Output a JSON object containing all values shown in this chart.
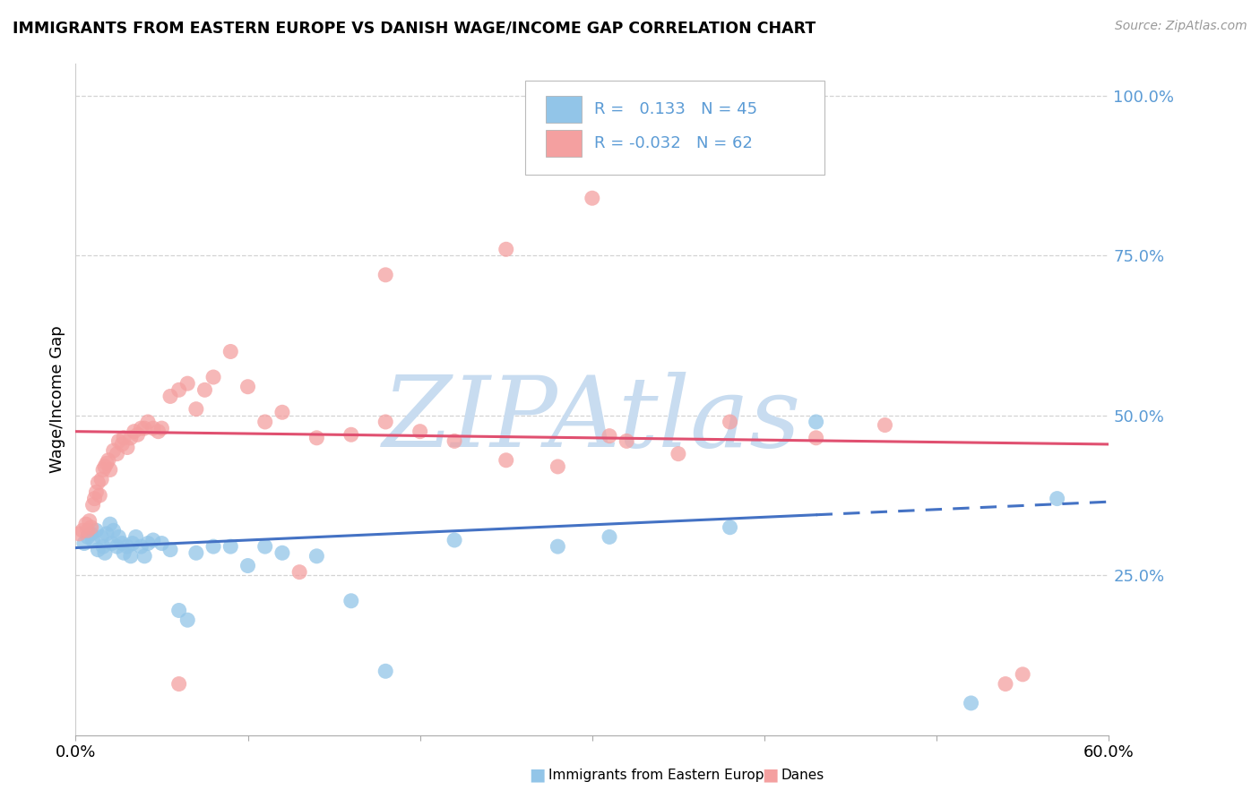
{
  "title": "IMMIGRANTS FROM EASTERN EUROPE VS DANISH WAGE/INCOME GAP CORRELATION CHART",
  "source": "Source: ZipAtlas.com",
  "ylabel": "Wage/Income Gap",
  "xlim": [
    0.0,
    0.6
  ],
  "ylim": [
    0.0,
    1.05
  ],
  "xtick_positions": [
    0.0,
    0.1,
    0.2,
    0.3,
    0.4,
    0.5,
    0.6
  ],
  "xticklabels": [
    "0.0%",
    "",
    "",
    "",
    "",
    "",
    "60.0%"
  ],
  "yticks_right": [
    0.25,
    0.5,
    0.75,
    1.0
  ],
  "yticklabels_right": [
    "25.0%",
    "50.0%",
    "75.0%",
    "100.0%"
  ],
  "blue_R": "0.133",
  "blue_N": "45",
  "pink_R": "-0.032",
  "pink_N": "62",
  "blue_color": "#92C5E8",
  "pink_color": "#F4A0A0",
  "trend_blue_color": "#4472C4",
  "trend_pink_color": "#E05070",
  "background_color": "#FFFFFF",
  "grid_color": "#C8C8C8",
  "title_color": "#000000",
  "right_axis_color": "#5B9BD5",
  "legend_text_color": "#5B9BD5",
  "watermark": "ZIPAtlas",
  "watermark_color": "#C8DCF0",
  "blue_scatter_x": [
    0.005,
    0.007,
    0.009,
    0.01,
    0.012,
    0.013,
    0.015,
    0.016,
    0.017,
    0.018,
    0.02,
    0.021,
    0.022,
    0.024,
    0.025,
    0.027,
    0.028,
    0.03,
    0.032,
    0.033,
    0.035,
    0.038,
    0.04,
    0.042,
    0.045,
    0.05,
    0.055,
    0.06,
    0.065,
    0.07,
    0.08,
    0.09,
    0.1,
    0.11,
    0.12,
    0.14,
    0.16,
    0.18,
    0.22,
    0.28,
    0.31,
    0.38,
    0.43,
    0.52,
    0.57
  ],
  "blue_scatter_y": [
    0.3,
    0.31,
    0.315,
    0.305,
    0.32,
    0.29,
    0.31,
    0.295,
    0.285,
    0.315,
    0.33,
    0.3,
    0.32,
    0.295,
    0.31,
    0.3,
    0.285,
    0.295,
    0.28,
    0.3,
    0.31,
    0.295,
    0.28,
    0.3,
    0.305,
    0.3,
    0.29,
    0.195,
    0.18,
    0.285,
    0.295,
    0.295,
    0.265,
    0.295,
    0.285,
    0.28,
    0.21,
    0.1,
    0.305,
    0.295,
    0.31,
    0.325,
    0.49,
    0.05,
    0.37
  ],
  "pink_scatter_x": [
    0.002,
    0.004,
    0.006,
    0.007,
    0.008,
    0.009,
    0.01,
    0.011,
    0.012,
    0.013,
    0.014,
    0.015,
    0.016,
    0.017,
    0.018,
    0.019,
    0.02,
    0.022,
    0.024,
    0.025,
    0.027,
    0.028,
    0.03,
    0.032,
    0.034,
    0.036,
    0.038,
    0.04,
    0.042,
    0.045,
    0.048,
    0.05,
    0.055,
    0.06,
    0.065,
    0.07,
    0.075,
    0.08,
    0.09,
    0.1,
    0.11,
    0.12,
    0.14,
    0.16,
    0.18,
    0.2,
    0.22,
    0.25,
    0.28,
    0.31,
    0.32,
    0.35,
    0.38,
    0.43,
    0.47,
    0.25,
    0.18,
    0.3,
    0.13,
    0.06,
    0.54,
    0.55
  ],
  "pink_scatter_y": [
    0.315,
    0.32,
    0.33,
    0.32,
    0.335,
    0.325,
    0.36,
    0.37,
    0.38,
    0.395,
    0.375,
    0.4,
    0.415,
    0.42,
    0.425,
    0.43,
    0.415,
    0.445,
    0.44,
    0.46,
    0.455,
    0.465,
    0.45,
    0.465,
    0.475,
    0.47,
    0.48,
    0.48,
    0.49,
    0.48,
    0.475,
    0.48,
    0.53,
    0.54,
    0.55,
    0.51,
    0.54,
    0.56,
    0.6,
    0.545,
    0.49,
    0.505,
    0.465,
    0.47,
    0.49,
    0.475,
    0.46,
    0.43,
    0.42,
    0.468,
    0.46,
    0.44,
    0.49,
    0.465,
    0.485,
    0.76,
    0.72,
    0.84,
    0.255,
    0.08,
    0.08,
    0.095
  ],
  "trend_blue_solid_end": 0.43,
  "trend_blue_total_end": 0.6
}
